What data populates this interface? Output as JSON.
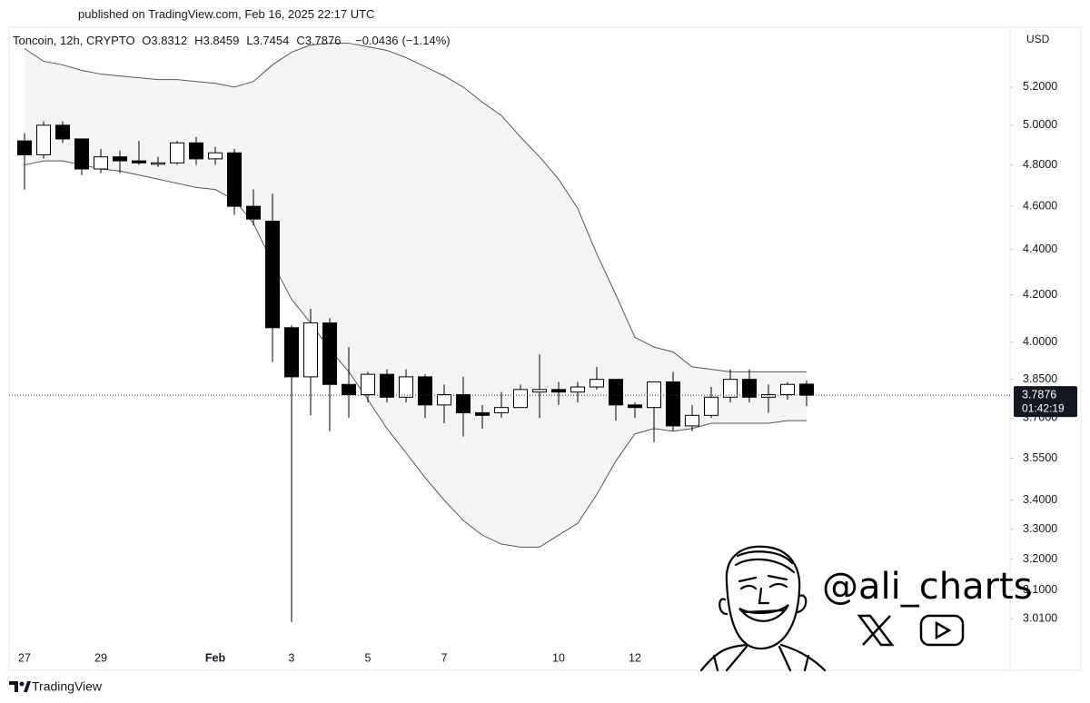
{
  "published": "published on TradingView.com, Feb 16, 2025 22:17 UTC",
  "brand": "TradingView",
  "watermark": "@ali_charts",
  "chart_data": {
    "type": "candlestick",
    "symbol": "Toncoin, 12h, CRYPTO",
    "ohlc": [
      {
        "label": "O",
        "value": 3.8312
      },
      {
        "label": "H",
        "value": 3.8459
      },
      {
        "label": "L",
        "value": 3.7454
      },
      {
        "label": "C",
        "value": 3.7876
      }
    ],
    "change": {
      "value": -0.0436,
      "label": "−0.0436"
    },
    "change_pct": {
      "value": -1.14,
      "label": "(−1.14%)"
    },
    "currency": "USD",
    "countdown": "01:42:19",
    "categories": [
      "27",
      null,
      null,
      null,
      "29",
      null,
      null,
      null,
      null,
      null,
      "Feb",
      null,
      null,
      null,
      "3",
      null,
      null,
      null,
      "5",
      null,
      null,
      null,
      "7",
      null,
      null,
      null,
      null,
      null,
      "10",
      null,
      null,
      null,
      "12",
      null,
      null,
      null,
      null,
      null,
      null,
      null,
      null,
      null
    ],
    "open": [
      4.92,
      4.85,
      5.0,
      4.93,
      4.78,
      4.84,
      4.82,
      4.81,
      4.81,
      4.91,
      4.83,
      4.86,
      4.6,
      4.53,
      4.06,
      3.86,
      4.08,
      3.83,
      3.79,
      3.87,
      3.78,
      3.86,
      3.75,
      3.79,
      3.72,
      3.72,
      3.74,
      3.8,
      3.81,
      3.8,
      3.82,
      3.85,
      3.75,
      3.74,
      3.84,
      3.67,
      3.71,
      3.78,
      3.85,
      3.78,
      3.79,
      3.8312
    ],
    "high": [
      4.96,
      5.02,
      5.02,
      4.93,
      4.88,
      4.87,
      4.92,
      4.84,
      4.92,
      4.94,
      4.89,
      4.88,
      4.68,
      4.66,
      4.07,
      4.14,
      4.1,
      3.98,
      3.88,
      3.89,
      3.89,
      3.87,
      3.83,
      3.86,
      3.75,
      3.8,
      3.83,
      3.95,
      3.84,
      3.84,
      3.9,
      3.85,
      3.76,
      3.84,
      3.88,
      3.75,
      3.82,
      3.89,
      3.89,
      3.83,
      3.84,
      3.8459
    ],
    "low": [
      4.68,
      4.83,
      4.91,
      4.75,
      4.76,
      4.76,
      4.8,
      4.79,
      4.8,
      4.8,
      4.8,
      4.56,
      4.51,
      3.92,
      3.0,
      3.71,
      3.65,
      3.7,
      3.76,
      3.76,
      3.76,
      3.7,
      3.68,
      3.63,
      3.66,
      3.7,
      3.74,
      3.7,
      3.75,
      3.76,
      3.81,
      3.69,
      3.7,
      3.61,
      3.65,
      3.65,
      3.7,
      3.76,
      3.76,
      3.72,
      3.77,
      3.7454
    ],
    "close": [
      4.85,
      5.0,
      4.93,
      4.78,
      4.84,
      4.82,
      4.81,
      4.81,
      4.91,
      4.83,
      4.86,
      4.6,
      4.54,
      4.06,
      3.86,
      4.08,
      3.83,
      3.79,
      3.87,
      3.78,
      3.86,
      3.75,
      3.79,
      3.72,
      3.71,
      3.74,
      3.81,
      3.81,
      3.8,
      3.82,
      3.85,
      3.75,
      3.74,
      3.84,
      3.67,
      3.71,
      3.78,
      3.85,
      3.78,
      3.79,
      3.83,
      3.7876
    ],
    "bands": {
      "upper": [
        5.41,
        5.34,
        5.32,
        5.29,
        5.27,
        5.26,
        5.25,
        5.24,
        5.24,
        5.23,
        5.22,
        5.2,
        5.23,
        5.32,
        5.39,
        5.43,
        5.44,
        5.44,
        5.42,
        5.4,
        5.36,
        5.31,
        5.26,
        5.2,
        5.12,
        5.05,
        4.94,
        4.84,
        4.73,
        4.59,
        4.38,
        4.2,
        4.02,
        3.98,
        3.96,
        3.9,
        3.89,
        3.88,
        3.88,
        3.88,
        3.88,
        3.88
      ],
      "lower": [
        4.8,
        4.82,
        4.82,
        4.8,
        4.78,
        4.77,
        4.75,
        4.73,
        4.71,
        4.69,
        4.68,
        4.63,
        4.52,
        4.34,
        4.18,
        4.08,
        3.97,
        3.88,
        3.77,
        3.66,
        3.57,
        3.48,
        3.4,
        3.33,
        3.28,
        3.25,
        3.24,
        3.24,
        3.28,
        3.32,
        3.42,
        3.54,
        3.64,
        3.66,
        3.65,
        3.66,
        3.68,
        3.68,
        3.68,
        3.68,
        3.69,
        3.69
      ],
      "line_color": "#555555",
      "fill_color": "#f4f4f4"
    },
    "up_color": "#ffffff",
    "down_color": "#000000",
    "log_scale": true,
    "grid": false,
    "ylim": [
      2.93,
      5.53
    ],
    "yticks": [
      {
        "value": 5.2,
        "label": "5.2000"
      },
      {
        "value": 5.0,
        "label": "5.0000"
      },
      {
        "value": 4.8,
        "label": "4.8000"
      },
      {
        "value": 4.6,
        "label": "4.6000"
      },
      {
        "value": 4.4,
        "label": "4.4000"
      },
      {
        "value": 4.2,
        "label": "4.2000"
      },
      {
        "value": 4.0,
        "label": "4.0000"
      },
      {
        "value": 3.85,
        "label": "3.8500"
      },
      {
        "value": 3.7,
        "label": "3.7000"
      },
      {
        "value": 3.55,
        "label": "3.5500"
      },
      {
        "value": 3.4,
        "label": "3.4000"
      },
      {
        "value": 3.3,
        "label": "3.3000"
      },
      {
        "value": 3.2,
        "label": "3.2000"
      },
      {
        "value": 3.1,
        "label": "3.1000"
      },
      {
        "value": 3.01,
        "label": "3.0100"
      }
    ]
  }
}
